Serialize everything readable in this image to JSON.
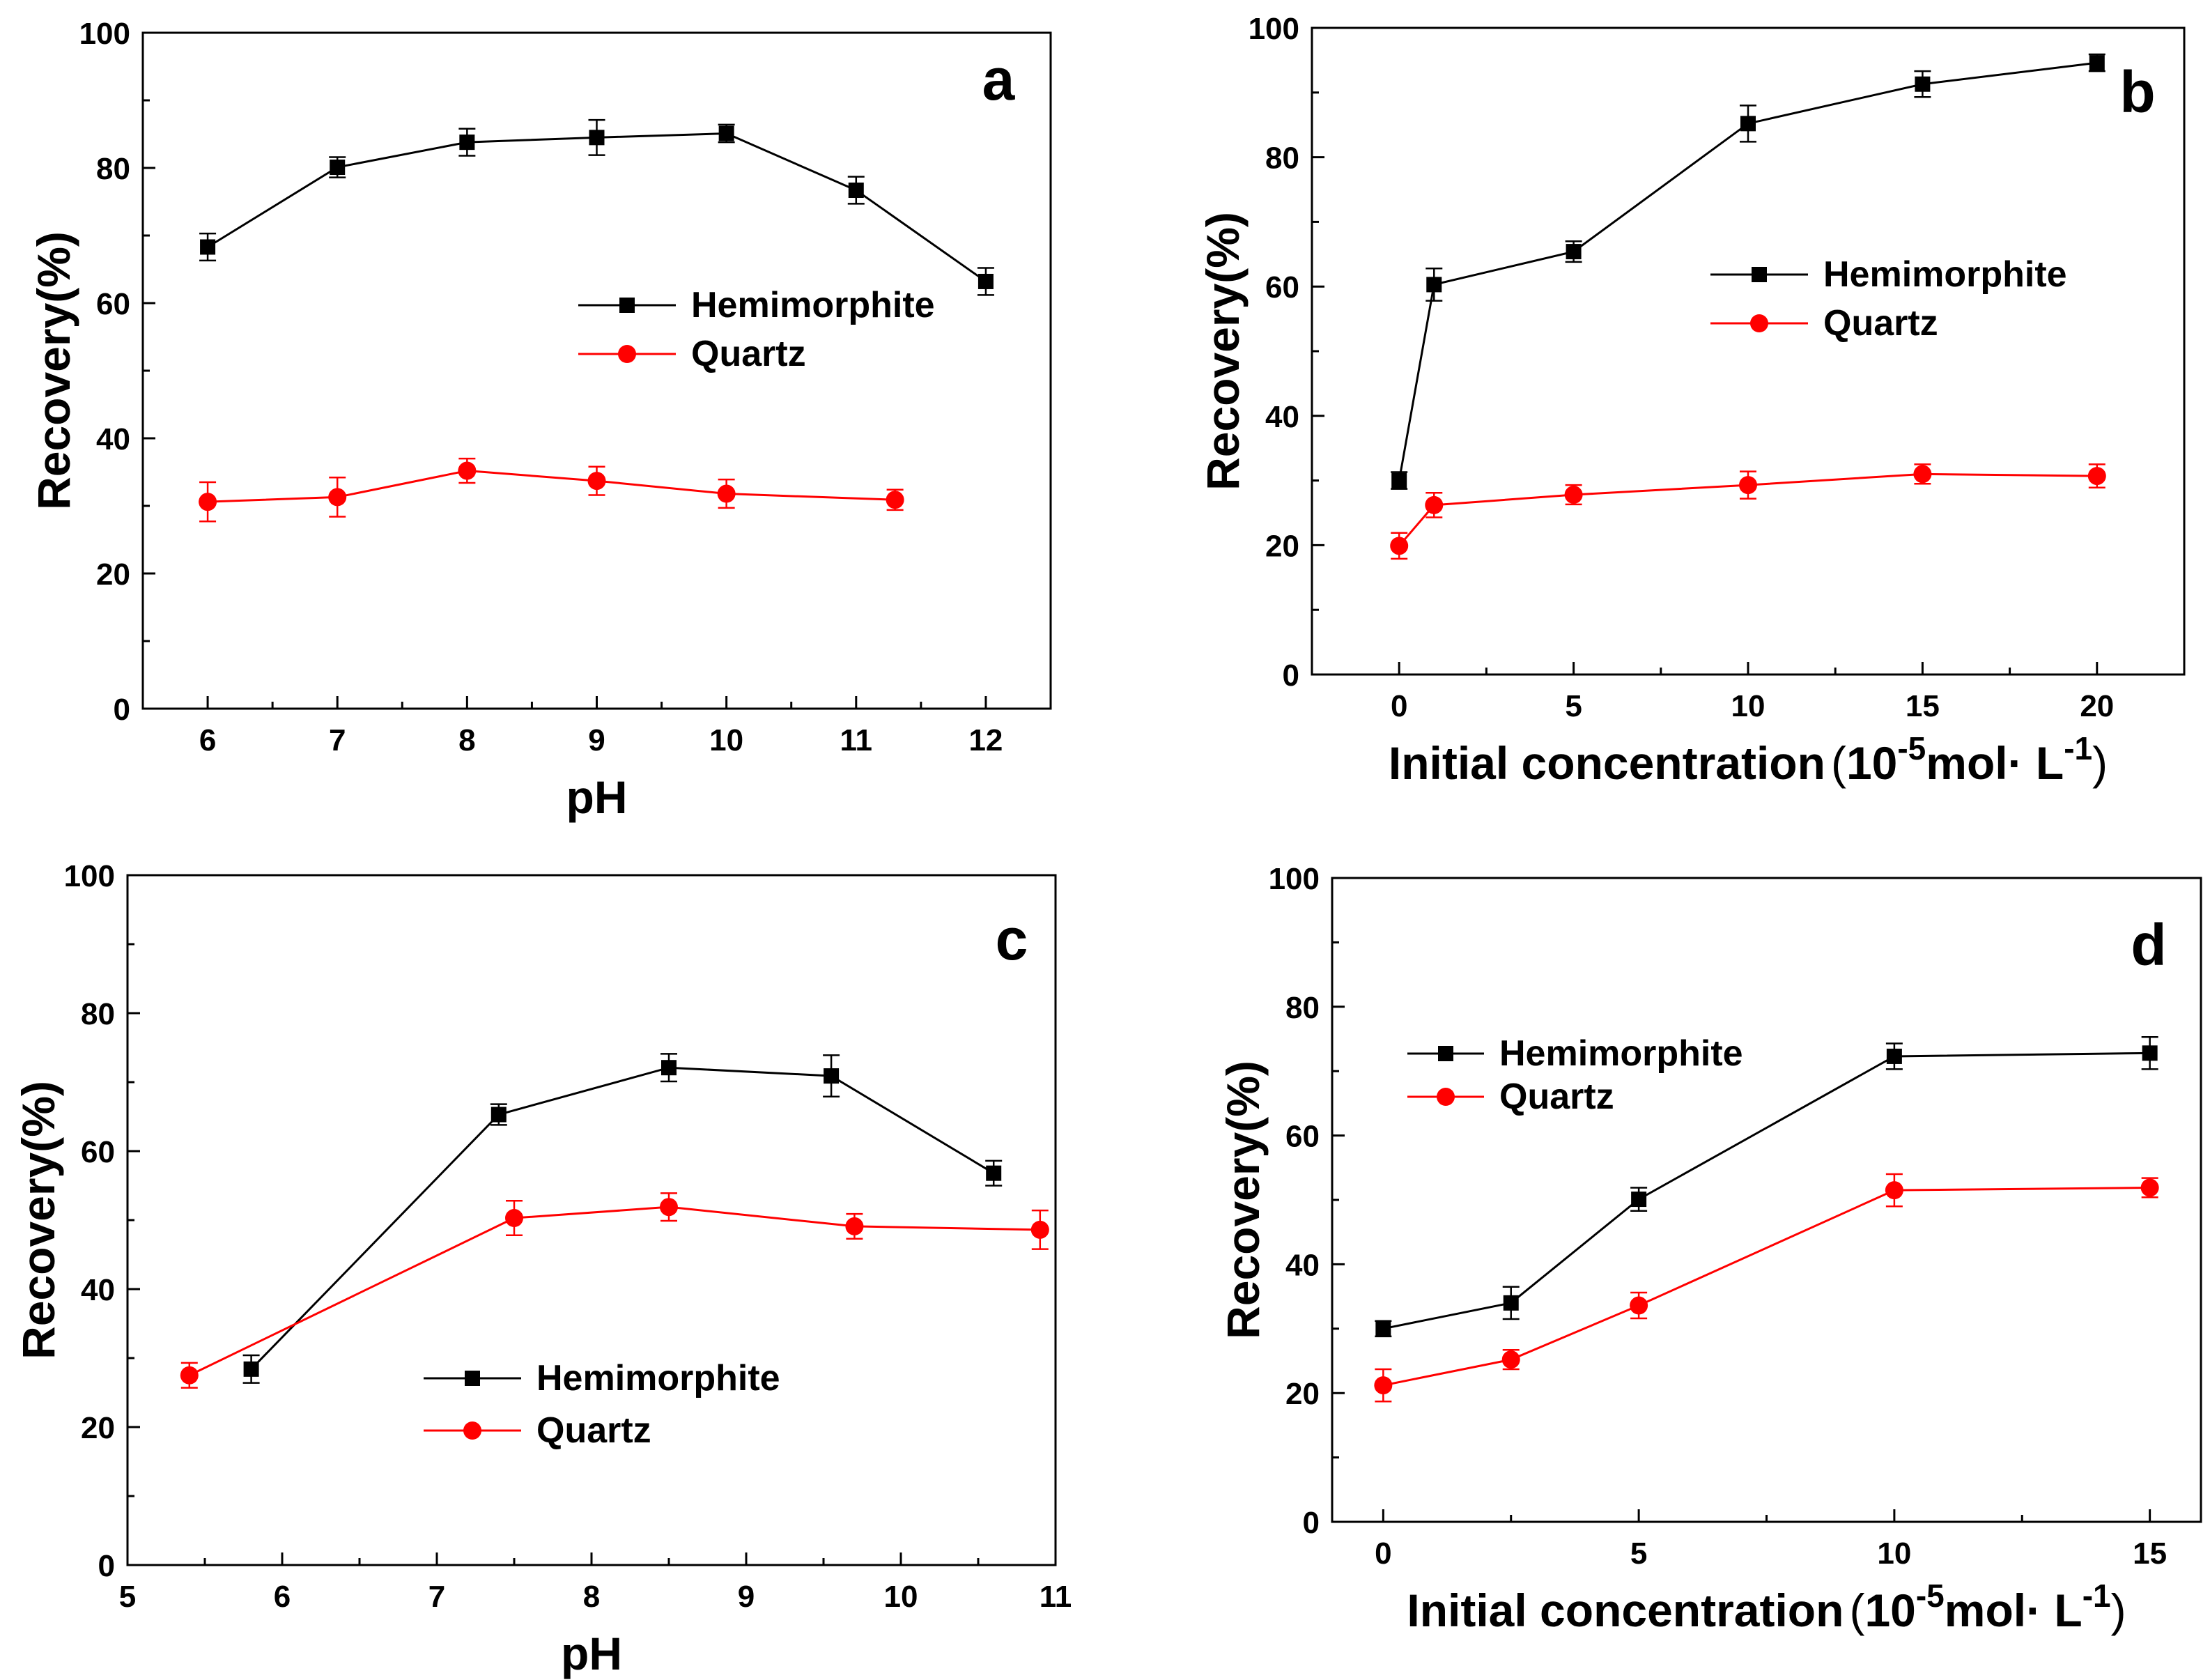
{
  "colors": {
    "hemimorphite": "#000000",
    "quartz": "#ff0000",
    "axis": "#000000"
  },
  "chart_data": [
    {
      "panel": "a",
      "type": "line",
      "ylabel": "Recovery(%)",
      "xlabel": {
        "main": "pH"
      },
      "xlim": [
        5.5,
        12.5
      ],
      "ylim": [
        0,
        100
      ],
      "xticks": [
        6,
        7,
        8,
        9,
        10,
        11,
        12
      ],
      "yticks": [
        0,
        20,
        40,
        60,
        80,
        100
      ],
      "legend": {
        "position": "right-middle"
      },
      "series": [
        {
          "name": "Hemimorphite",
          "marker": "square",
          "x": [
            6,
            7,
            8,
            9,
            10,
            11,
            12
          ],
          "y": [
            68.3,
            80.1,
            83.8,
            84.5,
            85.1,
            76.7,
            63.2
          ],
          "err": [
            2.0,
            1.5,
            2.0,
            2.6,
            1.3,
            2.0,
            2.0
          ]
        },
        {
          "name": "Quartz",
          "marker": "circle",
          "x": [
            6,
            7,
            8,
            9,
            10,
            11.3
          ],
          "y": [
            30.6,
            31.3,
            35.2,
            33.7,
            31.8,
            30.9
          ],
          "err": [
            2.9,
            2.9,
            1.8,
            2.1,
            2.1,
            1.5
          ]
        }
      ]
    },
    {
      "panel": "b",
      "type": "line",
      "ylabel": "Recovery(%)",
      "xlabel": {
        "main": "Initial concentration",
        "open": "(",
        "base": "10",
        "exp1": "-5",
        "mid": "mol·  L",
        "exp2": "-1",
        "close": ")"
      },
      "xlim": [
        -2.5,
        22.5
      ],
      "ylim": [
        0,
        100
      ],
      "xticks": [
        0,
        5,
        10,
        15,
        20
      ],
      "yticks": [
        0,
        20,
        40,
        60,
        80,
        100
      ],
      "legend": {
        "position": "right-middle"
      },
      "series": [
        {
          "name": "Hemimorphite",
          "marker": "square",
          "x": [
            0,
            1,
            5,
            10,
            15,
            20
          ],
          "y": [
            30.0,
            60.3,
            65.4,
            85.2,
            91.3,
            94.6
          ],
          "err": [
            1.3,
            2.5,
            1.6,
            2.8,
            2.0,
            1.3
          ]
        },
        {
          "name": "Quartz",
          "marker": "circle",
          "x": [
            0,
            1,
            5,
            10,
            15,
            20
          ],
          "y": [
            19.9,
            26.2,
            27.8,
            29.3,
            31.0,
            30.7
          ],
          "err": [
            2.0,
            1.9,
            1.5,
            2.1,
            1.5,
            1.8
          ]
        }
      ]
    },
    {
      "panel": "c",
      "type": "line",
      "ylabel": "Recovery(%)",
      "xlabel": {
        "main": "pH"
      },
      "xlim": [
        5,
        11
      ],
      "ylim": [
        0,
        100
      ],
      "xticks": [
        5,
        6,
        7,
        8,
        9,
        10,
        11
      ],
      "yticks": [
        0,
        20,
        40,
        60,
        80,
        100
      ],
      "legend": {
        "position": "center-bottom"
      },
      "series": [
        {
          "name": "Hemimorphite",
          "marker": "square",
          "x": [
            5.8,
            7.4,
            8.5,
            9.55,
            10.6
          ],
          "y": [
            28.4,
            65.3,
            72.1,
            70.9,
            56.8
          ],
          "err": [
            2.0,
            1.5,
            2.0,
            3.0,
            1.8
          ]
        },
        {
          "name": "Quartz",
          "marker": "circle",
          "x": [
            5.4,
            7.5,
            8.5,
            9.7,
            10.9
          ],
          "y": [
            27.5,
            50.3,
            51.9,
            49.1,
            48.6
          ],
          "err": [
            1.8,
            2.5,
            2.0,
            1.8,
            2.8
          ]
        }
      ]
    },
    {
      "panel": "d",
      "type": "line",
      "ylabel": "Recovery(%)",
      "xlabel": {
        "main": "Initial concentration",
        "open": "(",
        "base": "10",
        "exp1": "-5",
        "mid": "mol·  L",
        "exp2": "-1",
        "close": ")"
      },
      "xlim": [
        -1,
        16
      ],
      "ylim": [
        0,
        100
      ],
      "xticks": [
        0,
        5,
        10,
        15
      ],
      "yticks": [
        0,
        20,
        40,
        60,
        80,
        100
      ],
      "legend": {
        "position": "top-left"
      },
      "series": [
        {
          "name": "Hemimorphite",
          "marker": "square",
          "x": [
            0,
            2.5,
            5,
            10,
            15
          ],
          "y": [
            30.0,
            34.0,
            50.1,
            72.3,
            72.8
          ],
          "err": [
            1.2,
            2.5,
            1.8,
            2.0,
            2.5
          ]
        },
        {
          "name": "Quartz",
          "marker": "circle",
          "x": [
            0,
            2.5,
            5,
            10,
            15
          ],
          "y": [
            21.2,
            25.2,
            33.6,
            51.5,
            51.9
          ],
          "err": [
            2.5,
            1.5,
            2.0,
            2.5,
            1.5
          ]
        }
      ]
    }
  ]
}
